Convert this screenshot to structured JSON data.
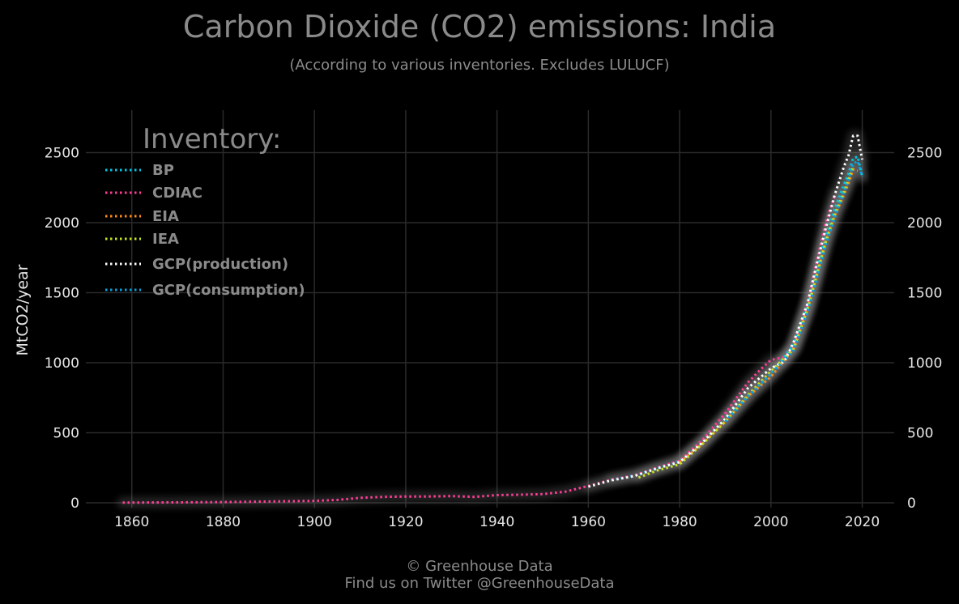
{
  "chart_data": {
    "type": "line",
    "title": "Carbon Dioxide (CO2) emissions: India",
    "subtitle": "(According to various inventories. Excludes LULUCF)",
    "xlabel": "",
    "ylabel": "MtCO2/year",
    "xlim": [
      1851,
      2027
    ],
    "ylim": [
      0,
      2780
    ],
    "x_ticks": [
      1860,
      1880,
      1900,
      1920,
      1940,
      1960,
      1980,
      2000,
      2020
    ],
    "y_ticks": [
      0,
      500,
      1000,
      1500,
      2000,
      2500
    ],
    "y_axis_both_sides": true,
    "grid": true,
    "legend": {
      "title": "Inventory:",
      "placement": "top-left"
    },
    "series": [
      {
        "name": "BP",
        "color": "#00c8e6",
        "x": [
          1965,
          1970,
          1975,
          1980,
          1985,
          1990,
          1995,
          2000,
          2005,
          2008,
          2010,
          2012,
          2014,
          2016,
          2017,
          2018,
          2019,
          2020
        ],
        "values": [
          165,
          195,
          245,
          300,
          430,
          600,
          760,
          920,
          1130,
          1400,
          1650,
          1900,
          2100,
          2270,
          2350,
          2460,
          2470,
          2330
        ]
      },
      {
        "name": "CDIAC",
        "color": "#ff3c96",
        "x": [
          1858,
          1870,
          1880,
          1890,
          1900,
          1905,
          1910,
          1915,
          1920,
          1925,
          1930,
          1935,
          1940,
          1945,
          1950,
          1955,
          1960,
          1965,
          1970,
          1975,
          1980,
          1985,
          1990,
          1995,
          1998,
          2000,
          2003,
          2005,
          2008,
          2010,
          2012,
          2014
        ],
        "values": [
          1,
          3,
          5,
          9,
          14,
          20,
          35,
          42,
          45,
          45,
          48,
          42,
          55,
          58,
          62,
          80,
          120,
          165,
          195,
          250,
          300,
          450,
          640,
          860,
          960,
          1020,
          1040,
          1120,
          1420,
          1720,
          2000,
          2200
        ]
      },
      {
        "name": "EIA",
        "color": "#ff8c1a",
        "x": [
          1980,
          1985,
          1990,
          1995,
          2000,
          2005,
          2008,
          2010,
          2012,
          2014,
          2016,
          2017,
          2018,
          2019
        ],
        "values": [
          290,
          420,
          580,
          760,
          900,
          1100,
          1380,
          1620,
          1870,
          2050,
          2200,
          2280,
          2380,
          2370
        ]
      },
      {
        "name": "IEA",
        "color": "#c8e61e",
        "x": [
          1971,
          1975,
          1980,
          1985,
          1990,
          1995,
          2000,
          2005,
          2008,
          2010,
          2012,
          2014,
          2016,
          2017,
          2018
        ],
        "values": [
          180,
          230,
          275,
          420,
          580,
          770,
          940,
          1100,
          1380,
          1620,
          1860,
          2060,
          2220,
          2310,
          2400
        ]
      },
      {
        "name": "GCP(production)",
        "color": "#ffffff",
        "x": [
          1960,
          1965,
          1970,
          1975,
          1980,
          1985,
          1990,
          1995,
          2000,
          2003,
          2005,
          2008,
          2010,
          2012,
          2014,
          2016,
          2017,
          2018,
          2019,
          2020
        ],
        "values": [
          115,
          160,
          190,
          245,
          290,
          430,
          600,
          820,
          960,
          1010,
          1150,
          1420,
          1700,
          1960,
          2200,
          2400,
          2480,
          2620,
          2620,
          2450
        ]
      },
      {
        "name": "GCP(consumption)",
        "color": "#0aa0dc",
        "x": [
          1990,
          1995,
          2000,
          2005,
          2008,
          2010,
          2012,
          2014,
          2016,
          2017,
          2018,
          2019,
          2020
        ],
        "values": [
          580,
          760,
          920,
          1090,
          1360,
          1600,
          1840,
          2040,
          2220,
          2300,
          2420,
          2440,
          2330
        ]
      }
    ]
  },
  "footer": {
    "line1": "© Greenhouse Data",
    "line2": "Find us on Twitter @GreenhouseData"
  },
  "colors": {
    "background": "#000000",
    "grid": "#2a2a2a",
    "title": "#8a8a8a",
    "tick_text": "#e6e6e6"
  }
}
